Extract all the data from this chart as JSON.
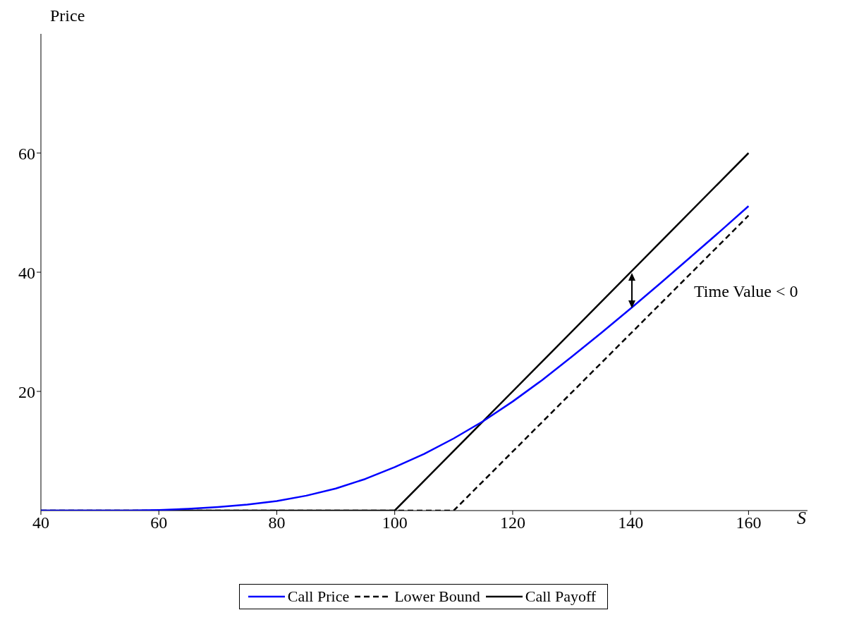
{
  "chart_data": {
    "type": "line",
    "xlabel": "S",
    "ylabel": "Price",
    "xlim": [
      40,
      170
    ],
    "ylim": [
      0,
      80
    ],
    "xticks": [
      40,
      60,
      80,
      100,
      120,
      140,
      160
    ],
    "yticks": [
      20,
      40,
      60
    ],
    "legend": "bottom",
    "marker": "none",
    "series": [
      {
        "name": "Call Price",
        "color": "#0000ff",
        "line_style": "solid",
        "x": [
          40,
          45,
          50,
          55,
          60,
          65,
          70,
          75,
          80,
          85,
          90,
          95,
          100,
          105,
          110,
          115,
          120,
          125,
          130,
          135,
          140,
          145,
          150,
          155,
          160
        ],
        "values": [
          0,
          0,
          0,
          0,
          0.1,
          0.3,
          0.6,
          1.0,
          1.6,
          2.5,
          3.7,
          5.3,
          7.3,
          9.5,
          12.1,
          15.0,
          18.3,
          21.9,
          25.8,
          29.8,
          33.9,
          38.1,
          42.4,
          46.7,
          51.1
        ]
      },
      {
        "name": "Lower Bound",
        "color": "#000000",
        "line_style": "dashed",
        "x": [
          40,
          110,
          160
        ],
        "values": [
          0,
          0,
          49.5
        ]
      },
      {
        "name": "Call Payoff",
        "color": "#000000",
        "line_style": "solid",
        "x": [
          40,
          100,
          160
        ],
        "values": [
          0,
          0,
          60
        ]
      }
    ],
    "annotations": [
      "Time Value < 0"
    ]
  }
}
